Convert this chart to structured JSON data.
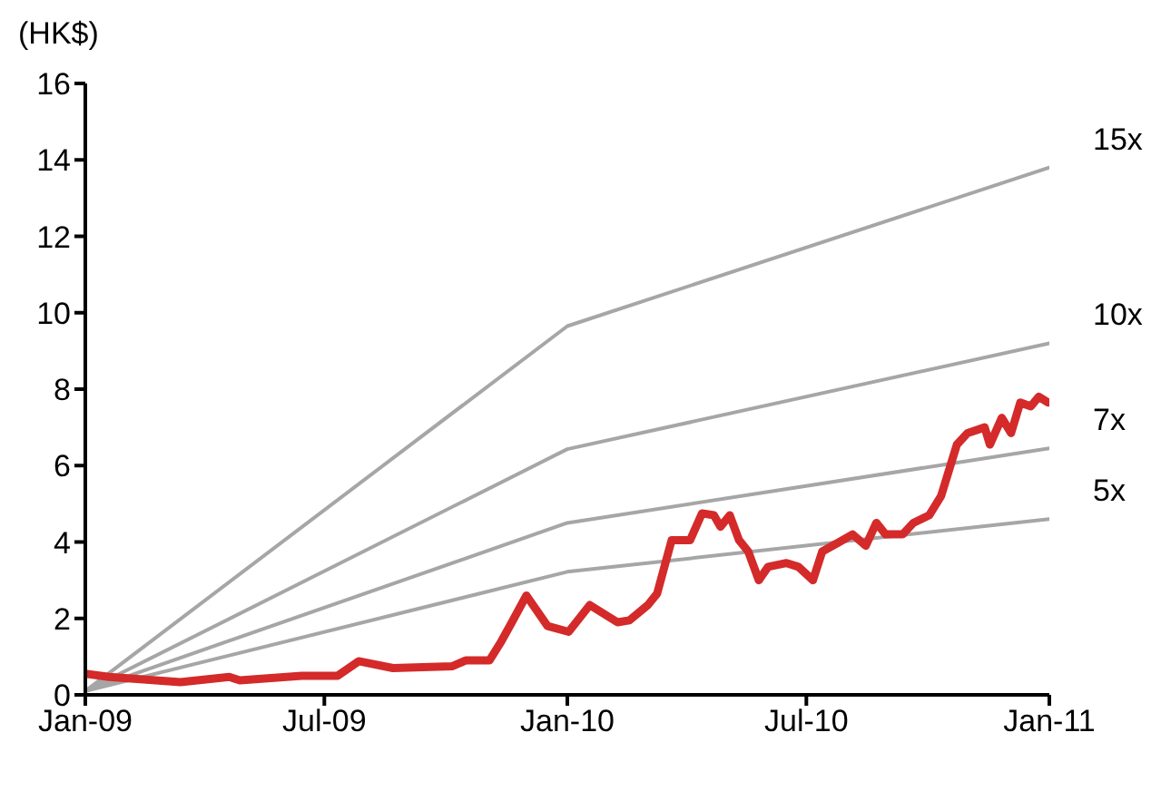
{
  "chart_data": {
    "type": "line",
    "ylabel": "(HK$)",
    "marker": "none",
    "line_style": "solid",
    "xlim": [
      "2009-01-01",
      "2011-01-01"
    ],
    "xticks": [
      {
        "value": "2009-01-01",
        "label": "Jan-09"
      },
      {
        "value": "2009-07-01",
        "label": "Jul-09"
      },
      {
        "value": "2010-01-01",
        "label": "Jan-10"
      },
      {
        "value": "2010-07-01",
        "label": "Jul-10"
      },
      {
        "value": "2011-01-01",
        "label": "Jan-11"
      }
    ],
    "ylim": [
      0,
      16
    ],
    "yticks": [
      0,
      2,
      4,
      6,
      8,
      10,
      12,
      14,
      16
    ],
    "series": [
      {
        "name": "15x",
        "color": "#a6a6a6",
        "x": [
          "2009-01-01",
          "2010-01-01",
          "2011-01-01"
        ],
        "values": [
          0.1,
          9.65,
          13.8
        ]
      },
      {
        "name": "10x",
        "color": "#a6a6a6",
        "x": [
          "2009-01-01",
          "2010-01-01",
          "2011-01-01"
        ],
        "values": [
          0.1,
          6.43,
          9.2
        ]
      },
      {
        "name": "7x",
        "color": "#a6a6a6",
        "x": [
          "2009-01-01",
          "2010-01-01",
          "2011-01-01"
        ],
        "values": [
          0.1,
          4.5,
          6.45
        ]
      },
      {
        "name": "5x",
        "color": "#a6a6a6",
        "x": [
          "2009-01-01",
          "2010-01-01",
          "2011-01-01"
        ],
        "values": [
          0.1,
          3.22,
          4.6
        ]
      },
      {
        "color": "#d42a2a",
        "x": [
          "2009-01-01",
          "2009-01-19",
          "2009-03-14",
          "2009-04-20",
          "2009-04-28",
          "2009-06-14",
          "2009-07-11",
          "2009-07-27",
          "2009-08-22",
          "2009-10-06",
          "2009-10-16",
          "2009-11-03",
          "2009-11-12",
          "2009-11-20",
          "2009-12-01",
          "2009-12-17",
          "2010-01-02",
          "2010-01-18",
          "2010-02-08",
          "2010-02-17",
          "2010-03-03",
          "2010-03-10",
          "2010-03-21",
          "2010-04-04",
          "2010-04-13",
          "2010-04-22",
          "2010-04-27",
          "2010-05-04",
          "2010-05-11",
          "2010-05-18",
          "2010-05-26",
          "2010-06-02",
          "2010-06-16",
          "2010-06-25",
          "2010-07-06",
          "2010-07-13",
          "2010-07-26",
          "2010-08-05",
          "2010-08-15",
          "2010-08-23",
          "2010-08-30",
          "2010-09-12",
          "2010-09-20",
          "2010-10-02",
          "2010-10-11",
          "2010-10-23",
          "2010-10-31",
          "2010-11-13",
          "2010-11-17",
          "2010-11-26",
          "2010-12-03",
          "2010-12-10",
          "2010-12-18",
          "2010-12-24",
          "2010-12-31"
        ],
        "values": [
          0.55,
          0.47,
          0.33,
          0.47,
          0.38,
          0.5,
          0.5,
          0.88,
          0.7,
          0.75,
          0.9,
          0.9,
          1.4,
          1.9,
          2.6,
          1.8,
          1.65,
          2.35,
          1.9,
          1.95,
          2.35,
          2.65,
          4.05,
          4.05,
          4.75,
          4.7,
          4.4,
          4.7,
          4.05,
          3.75,
          3.0,
          3.35,
          3.45,
          3.35,
          3.0,
          3.75,
          4.0,
          4.2,
          3.9,
          4.5,
          4.2,
          4.2,
          4.5,
          4.7,
          5.2,
          6.55,
          6.85,
          7.0,
          6.55,
          7.25,
          6.85,
          7.65,
          7.55,
          7.8,
          7.65
        ]
      }
    ]
  }
}
